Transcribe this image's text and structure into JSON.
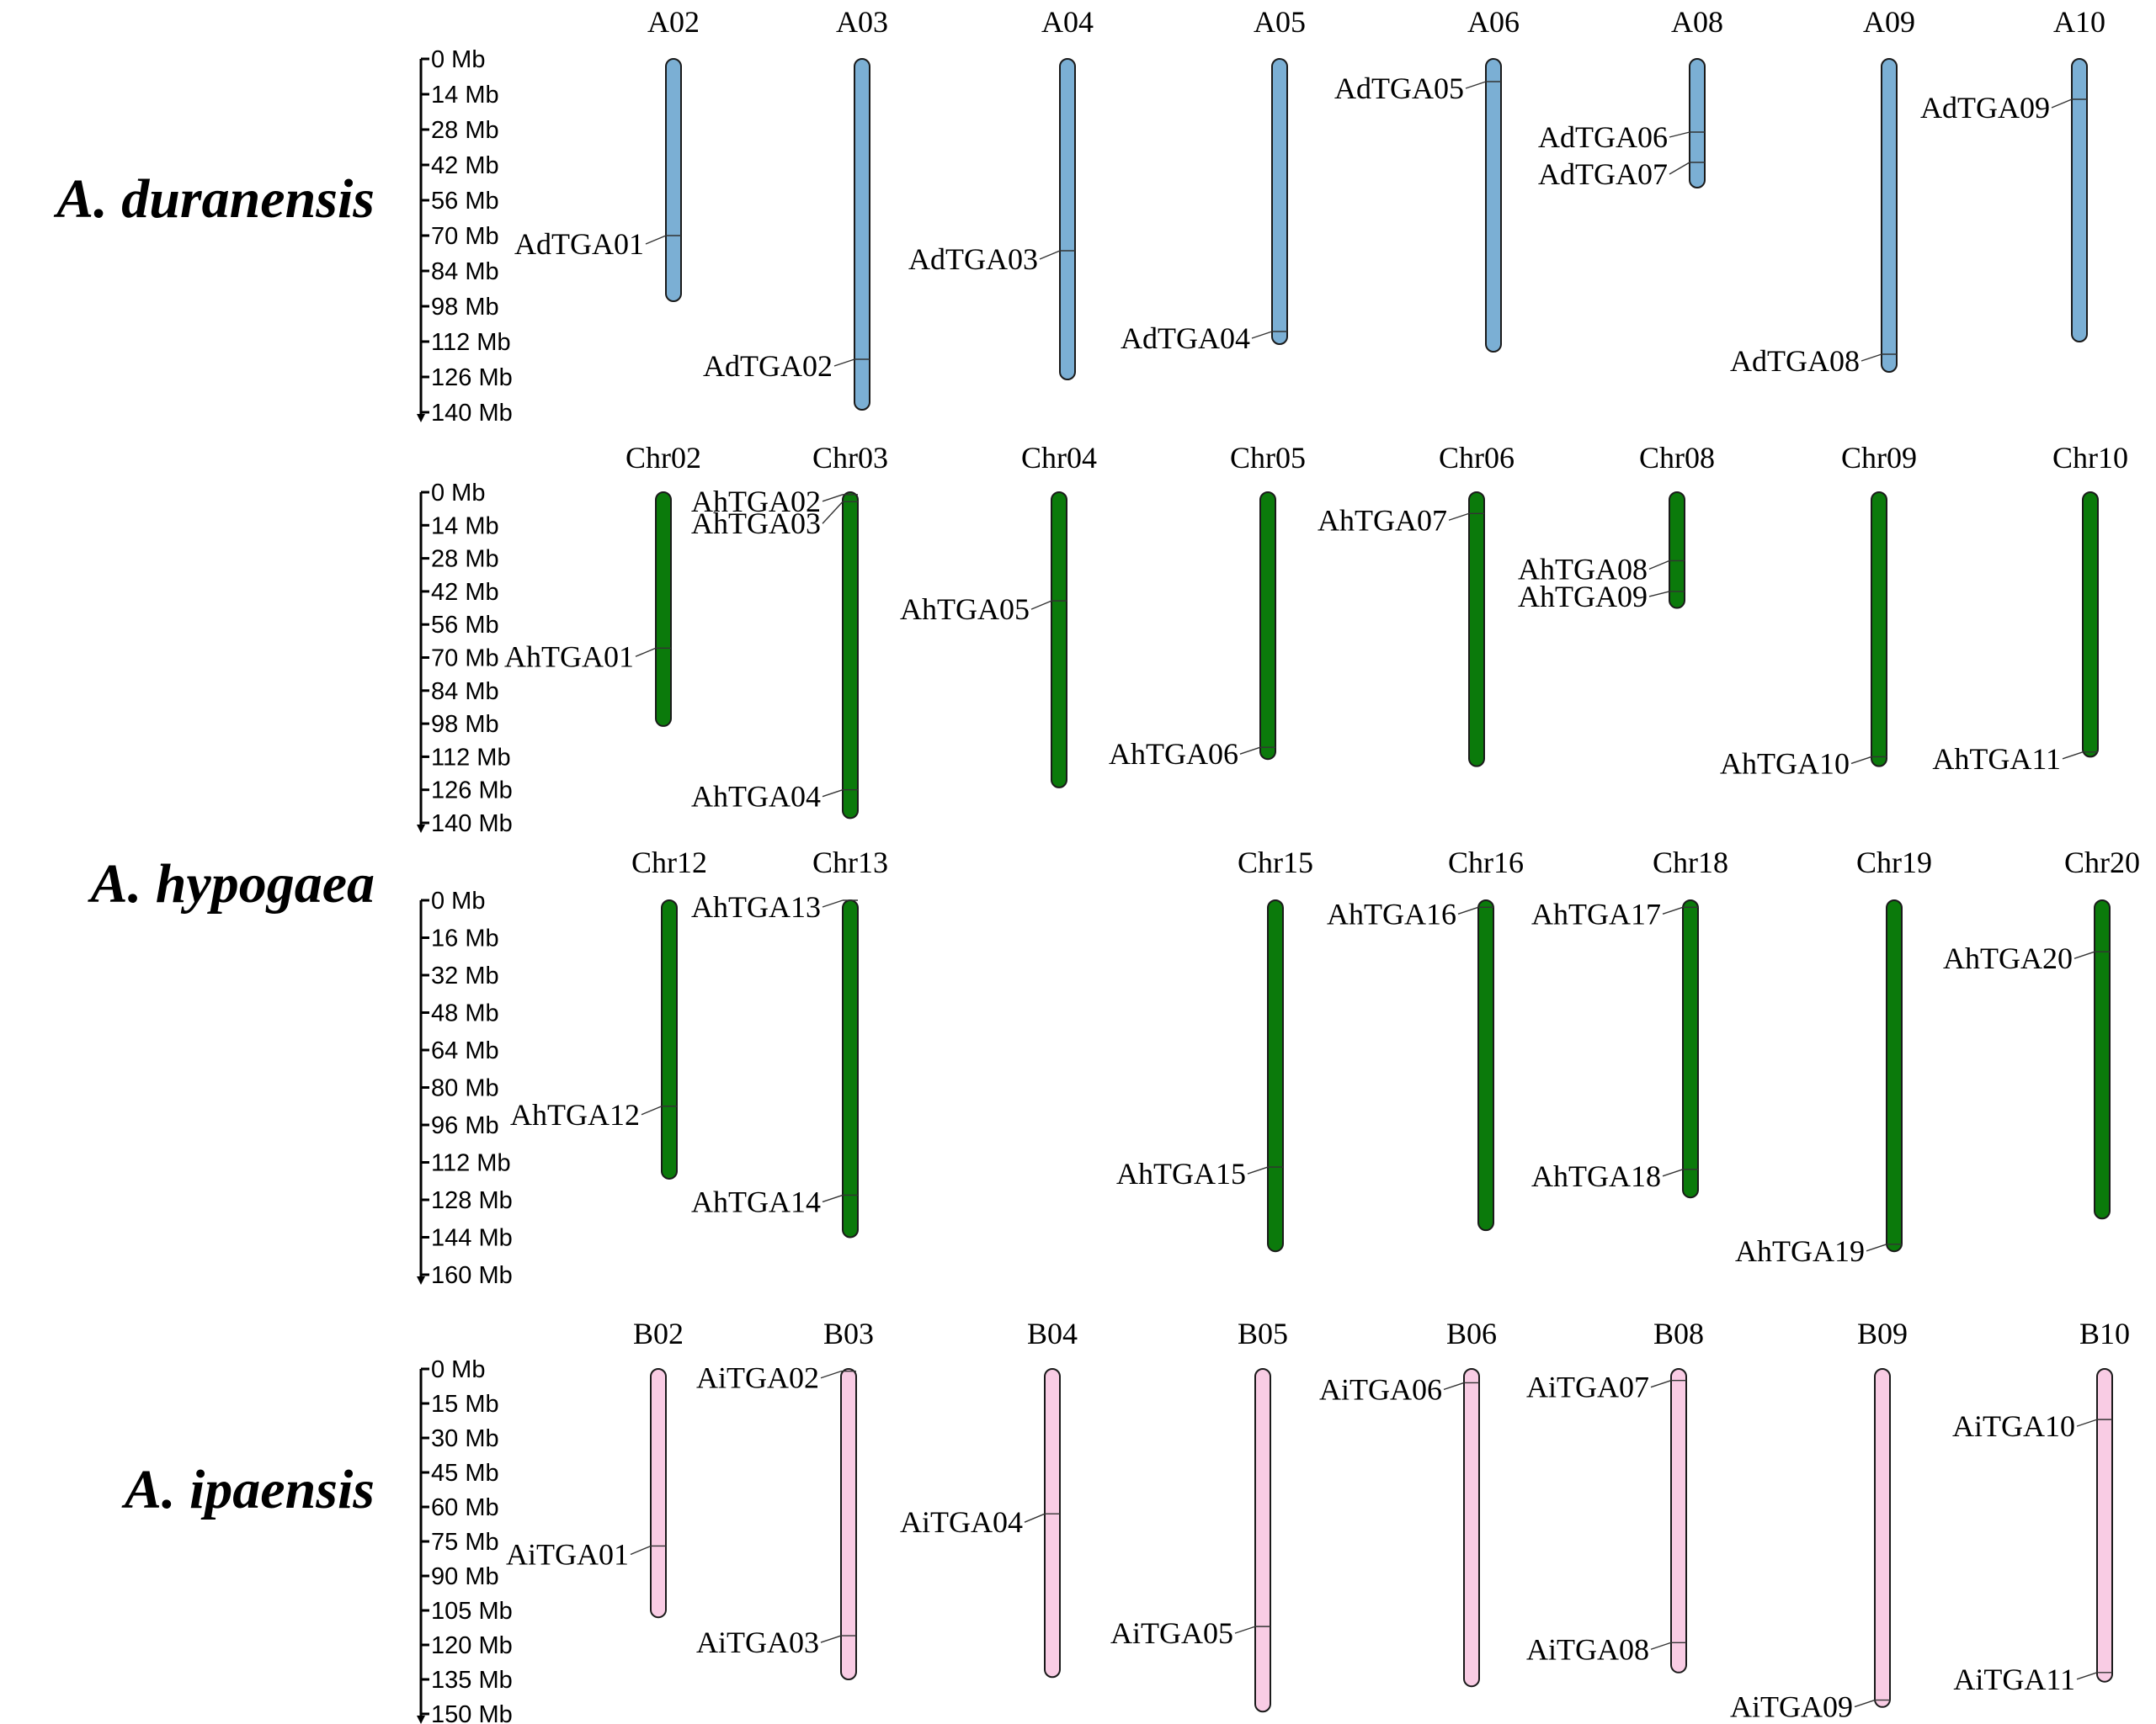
{
  "species": [
    {
      "name": "A. duranensis",
      "row": 0
    },
    {
      "name": "A. hypogaea",
      "row": 1.5
    },
    {
      "name": "A. ipaensis",
      "row": 3
    }
  ],
  "rows": [
    {
      "id": "duranensis",
      "color": "#7bafd4",
      "axis_max": 140,
      "ticks": [
        0,
        14,
        28,
        42,
        56,
        70,
        84,
        98,
        112,
        126,
        140
      ],
      "tick_labels": [
        "0 Mb",
        "14 Mb",
        "28 Mb",
        "42 Mb",
        "56 Mb",
        "70 Mb",
        "84 Mb",
        "98 Mb",
        "112 Mb",
        "126 Mb",
        "140 Mb"
      ],
      "chromosomes": [
        {
          "name": "A02",
          "length": 96,
          "genes": [
            {
              "name": "AdTGA01",
              "pos": 70,
              "label_dy": 10
            }
          ]
        },
        {
          "name": "A03",
          "length": 139,
          "genes": [
            {
              "name": "AdTGA02",
              "pos": 119,
              "label_dy": 8
            }
          ]
        },
        {
          "name": "A04",
          "length": 127,
          "genes": [
            {
              "name": "AdTGA03",
              "pos": 76,
              "label_dy": 10
            }
          ]
        },
        {
          "name": "A05",
          "length": 113,
          "genes": [
            {
              "name": "AdTGA04",
              "pos": 108,
              "label_dy": 8
            }
          ]
        },
        {
          "name": "A06",
          "length": 116,
          "genes": [
            {
              "name": "AdTGA05",
              "pos": 9,
              "label_dy": 8
            }
          ]
        },
        {
          "name": "A08",
          "length": 51,
          "genes": [
            {
              "name": "AdTGA06",
              "pos": 29,
              "label_dy": 6
            },
            {
              "name": "AdTGA07",
              "pos": 41,
              "label_dy": 14
            }
          ]
        },
        {
          "name": "A09",
          "length": 124,
          "genes": [
            {
              "name": "AdTGA08",
              "pos": 117,
              "label_dy": 8
            }
          ]
        },
        {
          "name": "A10",
          "length": 112,
          "genes": [
            {
              "name": "AdTGA09",
              "pos": 16,
              "label_dy": 10
            }
          ]
        }
      ]
    },
    {
      "id": "hypogaea-1",
      "color": "#0b7a0b",
      "axis_max": 140,
      "ticks": [
        0,
        14,
        28,
        42,
        56,
        70,
        84,
        98,
        112,
        126,
        140
      ],
      "tick_labels": [
        "0 Mb",
        "14 Mb",
        "28 Mb",
        "42 Mb",
        "56 Mb",
        "70 Mb",
        "84 Mb",
        "98 Mb",
        "112 Mb",
        "126 Mb",
        "140 Mb"
      ],
      "chromosomes": [
        {
          "name": "Chr02",
          "length": 99,
          "genes": [
            {
              "name": "AhTGA01",
              "pos": 66,
              "label_dy": 10
            }
          ]
        },
        {
          "name": "Chr03",
          "length": 138,
          "genes": [
            {
              "name": "AhTGA02",
              "pos": 1,
              "label_dy": 8
            },
            {
              "name": "AhTGA03",
              "pos": 4,
              "label_dy": 26
            },
            {
              "name": "AhTGA04",
              "pos": 126,
              "label_dy": 8
            }
          ]
        },
        {
          "name": "Chr04",
          "length": 125,
          "genes": [
            {
              "name": "AhTGA05",
              "pos": 46,
              "label_dy": 10
            }
          ]
        },
        {
          "name": "Chr05",
          "length": 113,
          "genes": [
            {
              "name": "AhTGA06",
              "pos": 108,
              "label_dy": 8
            }
          ]
        },
        {
          "name": "Chr06",
          "length": 116,
          "genes": [
            {
              "name": "AhTGA07",
              "pos": 9,
              "label_dy": 8
            }
          ]
        },
        {
          "name": "Chr08",
          "length": 49,
          "genes": [
            {
              "name": "AhTGA08",
              "pos": 29,
              "label_dy": 10
            },
            {
              "name": "AhTGA09",
              "pos": 42,
              "label_dy": 6
            }
          ]
        },
        {
          "name": "Chr09",
          "length": 116,
          "genes": [
            {
              "name": "AhTGA10",
              "pos": 112,
              "label_dy": 8
            }
          ]
        },
        {
          "name": "Chr10",
          "length": 112,
          "genes": [
            {
              "name": "AhTGA11",
              "pos": 110,
              "label_dy": 8
            }
          ]
        }
      ]
    },
    {
      "id": "hypogaea-2",
      "color": "#0b7a0b",
      "axis_max": 160,
      "ticks": [
        0,
        16,
        32,
        48,
        64,
        80,
        96,
        112,
        128,
        144,
        160
      ],
      "tick_labels": [
        "0 Mb",
        "16 Mb",
        "32 Mb",
        "48 Mb",
        "64 Mb",
        "80 Mb",
        "96 Mb",
        "112 Mb",
        "128 Mb",
        "144 Mb",
        "160 Mb"
      ],
      "chromosomes": [
        {
          "name": "Chr12",
          "length": 119,
          "genes": [
            {
              "name": "AhTGA12",
              "pos": 88,
              "label_dy": 10
            }
          ]
        },
        {
          "name": "Chr13",
          "length": 144,
          "genes": [
            {
              "name": "AhTGA13",
              "pos": 0,
              "label_dy": 8
            },
            {
              "name": "AhTGA14",
              "pos": 126,
              "label_dy": 8
            }
          ]
        },
        {
          "name": "Chr15",
          "length": 150,
          "genes": [
            {
              "name": "AhTGA15",
              "pos": 114,
              "label_dy": 8
            }
          ]
        },
        {
          "name": "Chr16",
          "length": 141,
          "genes": [
            {
              "name": "AhTGA16",
              "pos": 3,
              "label_dy": 8
            }
          ]
        },
        {
          "name": "Chr18",
          "length": 127,
          "genes": [
            {
              "name": "AhTGA17",
              "pos": 3,
              "label_dy": 8
            },
            {
              "name": "AhTGA18",
              "pos": 115,
              "label_dy": 8
            }
          ]
        },
        {
          "name": "Chr19",
          "length": 150,
          "genes": [
            {
              "name": "AhTGA19",
              "pos": 147,
              "label_dy": 8
            }
          ]
        },
        {
          "name": "Chr20",
          "length": 136,
          "genes": [
            {
              "name": "AhTGA20",
              "pos": 22,
              "label_dy": 8
            }
          ]
        }
      ]
    },
    {
      "id": "ipaensis",
      "color": "#f9cce4",
      "axis_max": 150,
      "ticks": [
        0,
        15,
        30,
        45,
        60,
        75,
        90,
        105,
        120,
        135,
        150
      ],
      "tick_labels": [
        "0 Mb",
        "15 Mb",
        "30 Mb",
        "45 Mb",
        "60 Mb",
        "75 Mb",
        "90 Mb",
        "105 Mb",
        "120 Mb",
        "135 Mb",
        "150 Mb"
      ],
      "chromosomes": [
        {
          "name": "B02",
          "length": 108,
          "genes": [
            {
              "name": "AiTGA01",
              "pos": 77,
              "label_dy": 10
            }
          ]
        },
        {
          "name": "B03",
          "length": 135,
          "genes": [
            {
              "name": "AiTGA02",
              "pos": 1,
              "label_dy": 8
            },
            {
              "name": "AiTGA03",
              "pos": 116,
              "label_dy": 8
            }
          ]
        },
        {
          "name": "B04",
          "length": 134,
          "genes": [
            {
              "name": "AiTGA04",
              "pos": 63,
              "label_dy": 10
            }
          ]
        },
        {
          "name": "B05",
          "length": 149,
          "genes": [
            {
              "name": "AiTGA05",
              "pos": 112,
              "label_dy": 8
            }
          ]
        },
        {
          "name": "B06",
          "length": 138,
          "genes": [
            {
              "name": "AiTGA06",
              "pos": 6,
              "label_dy": 8
            }
          ]
        },
        {
          "name": "B08",
          "length": 132,
          "genes": [
            {
              "name": "AiTGA07",
              "pos": 5,
              "label_dy": 8
            },
            {
              "name": "AiTGA08",
              "pos": 119,
              "label_dy": 8
            }
          ]
        },
        {
          "name": "B09",
          "length": 147,
          "genes": [
            {
              "name": "AiTGA09",
              "pos": 144,
              "label_dy": 8
            }
          ]
        },
        {
          "name": "B10",
          "length": 136,
          "genes": [
            {
              "name": "AiTGA10",
              "pos": 22,
              "label_dy": 8
            },
            {
              "name": "AiTGA11",
              "pos": 132,
              "label_dy": 8
            }
          ]
        }
      ]
    }
  ]
}
